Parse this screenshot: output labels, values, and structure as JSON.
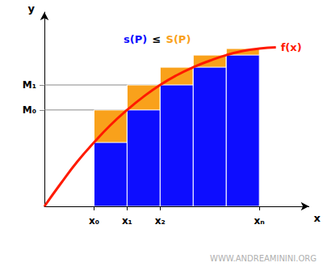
{
  "chart_data": {
    "type": "bar",
    "title": "s(P) ≤ S(P)",
    "xlabel": "x",
    "ylabel": "y",
    "xlim": [
      0,
      8
    ],
    "ylim": [
      0,
      8
    ],
    "xticks": [
      {
        "value": 1.5,
        "label": "x₀"
      },
      {
        "value": 2.5,
        "label": "x₁"
      },
      {
        "value": 3.5,
        "label": "x₂"
      },
      {
        "value": 6.5,
        "label": "xₙ"
      }
    ],
    "yticks": [
      {
        "value": 3.97,
        "label": "M₀"
      },
      {
        "value": 5.0,
        "label": "M₁"
      }
    ],
    "bins": [
      1.5,
      2.5,
      3.5,
      4.5,
      5.5,
      6.5
    ],
    "series": [
      {
        "name": "S(P)",
        "type": "bar",
        "color": "#f9a11b",
        "values": [
          3.97,
          5.0,
          5.73,
          6.23,
          6.5
        ]
      },
      {
        "name": "s(P)",
        "type": "bar",
        "color": "#0d0dff",
        "values": [
          2.63,
          3.97,
          5.0,
          5.73,
          6.23
        ]
      },
      {
        "name": "f(x)",
        "type": "line",
        "color": "#ff1a00",
        "x": [
          0,
          0.5,
          1.0,
          1.5,
          2.0,
          2.5,
          3.0,
          3.5,
          4.0,
          4.5,
          5.0,
          5.5,
          6.0,
          6.5,
          7.0
        ],
        "values": [
          0,
          0.95,
          1.85,
          2.63,
          3.35,
          3.97,
          4.52,
          5.0,
          5.4,
          5.73,
          6.0,
          6.23,
          6.4,
          6.5,
          6.55
        ]
      }
    ],
    "annotations": [
      "WWW.ANDREAMININI.ORG"
    ]
  }
}
